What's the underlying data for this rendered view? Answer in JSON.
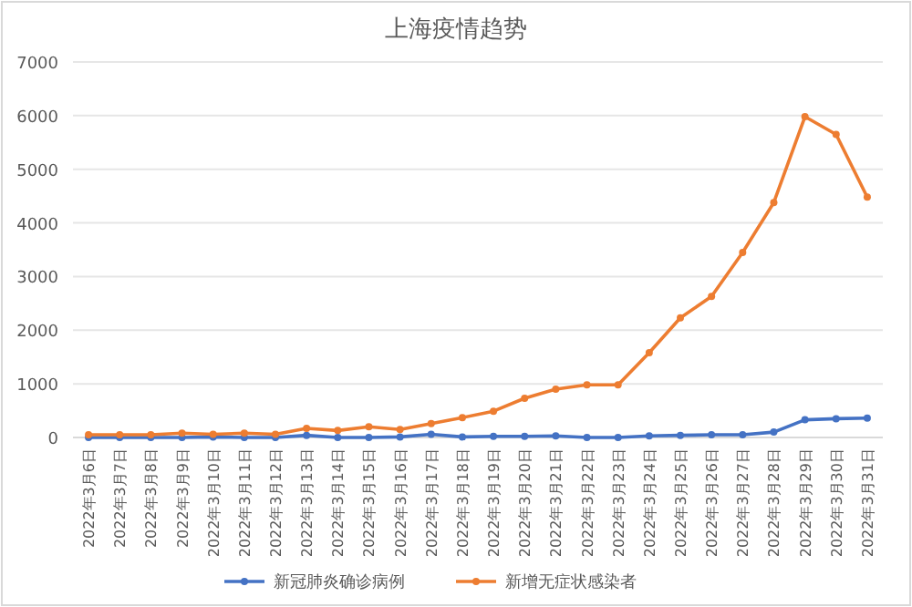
{
  "chart_data": {
    "type": "line",
    "title": "上海疫情趋势",
    "categories": [
      "2022年3月6日",
      "2022年3月7日",
      "2022年3月8日",
      "2022年3月9日",
      "2022年3月10日",
      "2022年3月11日",
      "2022年3月12日",
      "2022年3月13日",
      "2022年3月14日",
      "2022年3月15日",
      "2022年3月16日",
      "2022年3月17日",
      "2022年3月18日",
      "2022年3月19日",
      "2022年3月20日",
      "2022年3月21日",
      "2022年3月22日",
      "2022年3月23日",
      "2022年3月24日",
      "2022年3月25日",
      "2022年3月26日",
      "2022年3月27日",
      "2022年3月28日",
      "2022年3月29日",
      "2022年3月30日",
      "2022年3月31日"
    ],
    "series": [
      {
        "name": "新冠肺炎确诊病例",
        "color": "#4472c4",
        "values": [
          0,
          0,
          0,
          0,
          10,
          0,
          0,
          40,
          0,
          0,
          10,
          60,
          10,
          20,
          20,
          30,
          0,
          0,
          30,
          40,
          50,
          50,
          100,
          330,
          350,
          360
        ]
      },
      {
        "name": "新增无症状感染者",
        "color": "#ed7d31",
        "values": [
          50,
          50,
          50,
          80,
          60,
          80,
          60,
          170,
          130,
          200,
          150,
          260,
          370,
          490,
          730,
          900,
          980,
          980,
          1580,
          2230,
          2630,
          3450,
          4380,
          5980,
          5650,
          4480
        ]
      }
    ],
    "ylim": [
      0,
      7000
    ],
    "yticks": [
      0,
      1000,
      2000,
      3000,
      4000,
      5000,
      6000,
      7000
    ],
    "grid": "y",
    "legend": "bottom",
    "marker": "circle",
    "line_style": "solid"
  }
}
